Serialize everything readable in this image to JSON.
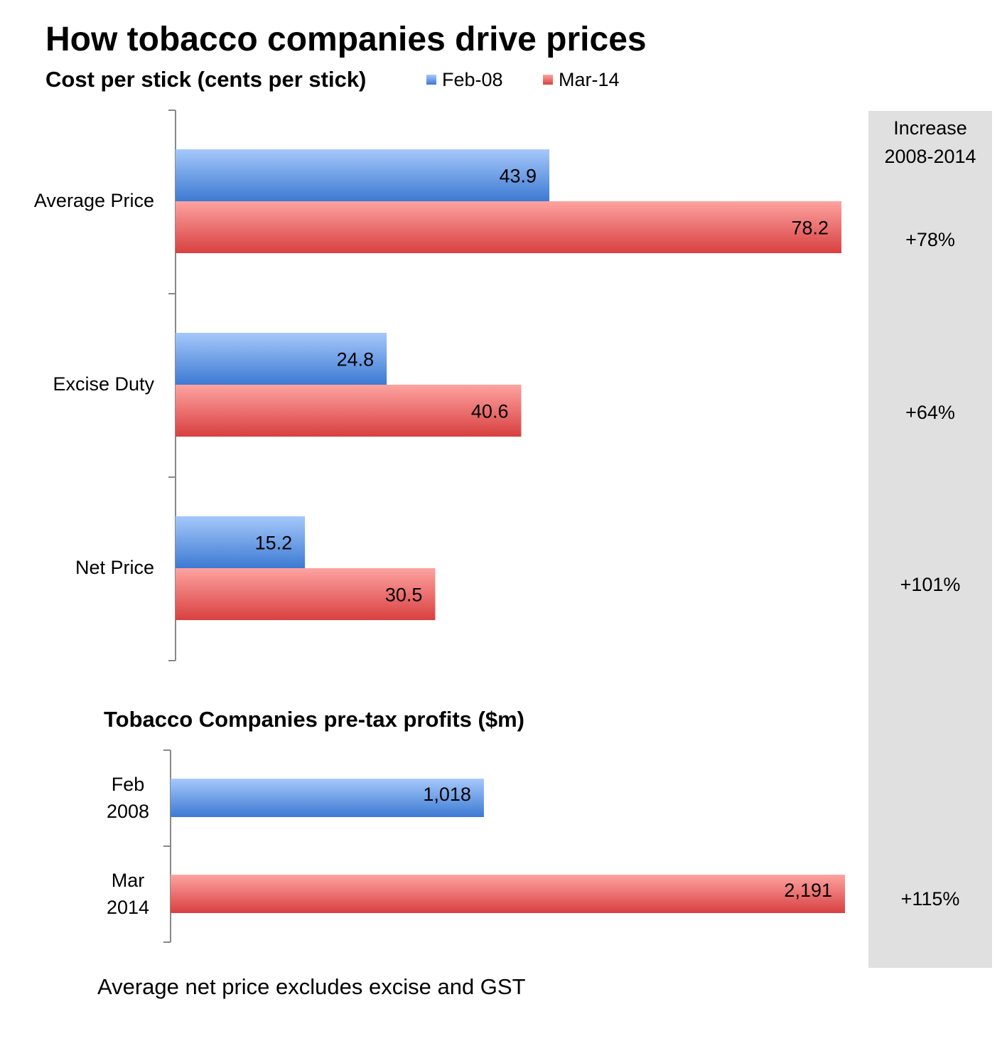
{
  "title": "How tobacco companies drive prices",
  "increase_header": [
    "Increase",
    "2008-2014"
  ],
  "footnote": "Average net price excludes excise and GST",
  "colors": {
    "feb08": "#4a86d8",
    "mar14": "#e05050",
    "panel": "#e0e0e0"
  },
  "chart_data": [
    {
      "type": "bar",
      "orientation": "horizontal",
      "title": "Cost per stick (cents per stick)",
      "categories": [
        "Average Price",
        "Excise Duty",
        "Net Price"
      ],
      "series": [
        {
          "name": "Feb-08",
          "values": [
            43.9,
            24.8,
            15.2
          ],
          "labels": [
            "43.9",
            "24.8",
            "15.2"
          ]
        },
        {
          "name": "Mar-14",
          "values": [
            78.2,
            40.6,
            30.5
          ],
          "labels": [
            "78.2",
            "40.6",
            "30.5"
          ]
        }
      ],
      "increase": [
        "+78%",
        "+64%",
        "+101%"
      ],
      "legend_position": "top",
      "grid": false
    },
    {
      "type": "bar",
      "orientation": "horizontal",
      "title": "Tobacco Companies pre-tax profits ($m)",
      "categories": [
        [
          "Feb",
          "2008"
        ],
        [
          "Mar",
          "2014"
        ]
      ],
      "values": [
        1018,
        2191
      ],
      "labels": [
        "1,018",
        "2,191"
      ],
      "increase": "+115%",
      "grid": false
    }
  ]
}
